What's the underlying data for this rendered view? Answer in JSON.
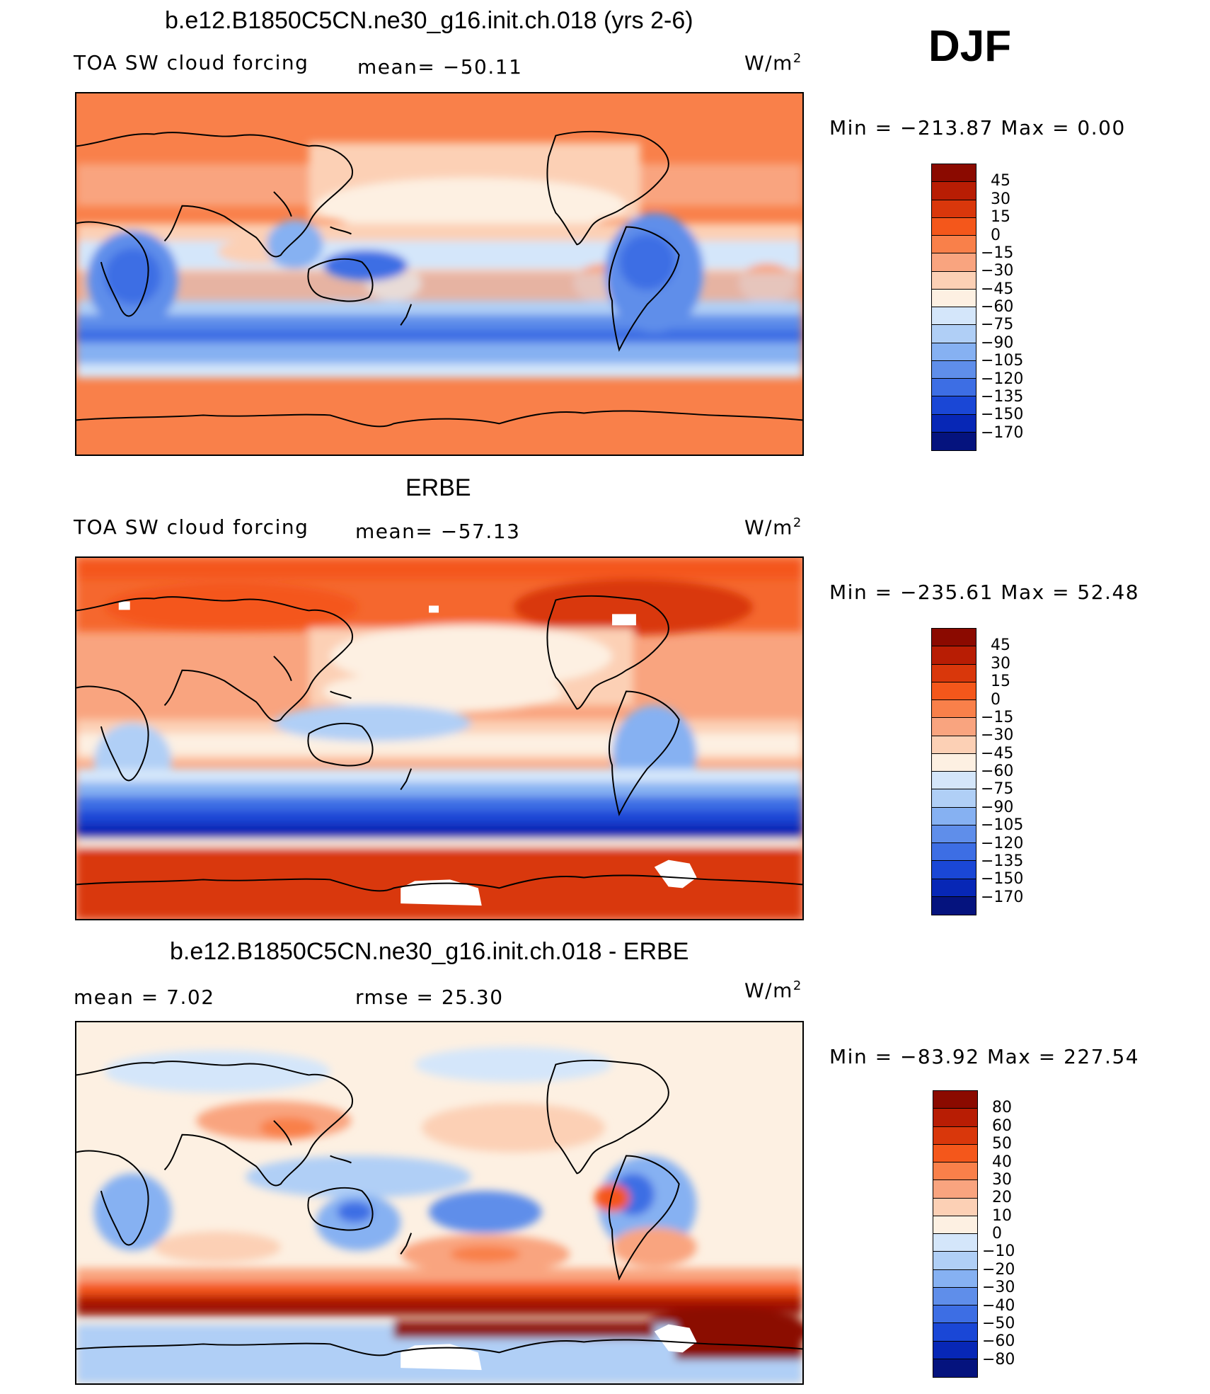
{
  "season": "DJF",
  "panels": [
    {
      "id": "model",
      "title": "b.e12.B1850C5CN.ne30_g16.init.ch.018 (yrs 2-6)",
      "left_label": "TOA SW cloud forcing",
      "stat_label": "mean= −50.11",
      "units": "W/m",
      "units_exp": "2",
      "minmax": "Min  =  −213.87  Max  =     0.00",
      "colorbar": {
        "colors": [
          "#8b0a00",
          "#b81d04",
          "#d9370b",
          "#f4571b",
          "#f9804a",
          "#f9a47f",
          "#fcd0b5",
          "#fdf0e2",
          "#d4e6fa",
          "#b0cff6",
          "#86b1f2",
          "#5f8eea",
          "#3d6ee4",
          "#1a47d6",
          "#0727b6",
          "#05137e"
        ],
        "ticks": [
          "45",
          "30",
          "15",
          "0",
          "−15",
          "−30",
          "−45",
          "−60",
          "−75",
          "−90",
          "−105",
          "−120",
          "−135",
          "−150",
          "−170"
        ]
      }
    },
    {
      "id": "obs",
      "title": "ERBE",
      "left_label": "TOA SW cloud forcing",
      "stat_label": "mean= −57.13",
      "units": "W/m",
      "units_exp": "2",
      "minmax": "Min  =  −235.61  Max  =   52.48",
      "colorbar": {
        "colors": [
          "#8b0a00",
          "#b81d04",
          "#d9370b",
          "#f4571b",
          "#f9804a",
          "#f9a47f",
          "#fcd0b5",
          "#fdf0e2",
          "#d4e6fa",
          "#b0cff6",
          "#86b1f2",
          "#5f8eea",
          "#3d6ee4",
          "#1a47d6",
          "#0727b6",
          "#05137e"
        ],
        "ticks": [
          "45",
          "30",
          "15",
          "0",
          "−15",
          "−30",
          "−45",
          "−60",
          "−75",
          "−90",
          "−105",
          "−120",
          "−135",
          "−150",
          "−170"
        ]
      }
    },
    {
      "id": "diff",
      "title": "b.e12.B1850C5CN.ne30_g16.init.ch.018 - ERBE",
      "left_label": "mean  =     7.02",
      "stat_label": "rmse  =    25.30",
      "units": "W/m",
      "units_exp": "2",
      "minmax": "Min  =  −83.92  Max  =  227.54",
      "colorbar": {
        "colors": [
          "#8b0a00",
          "#b81d04",
          "#d9370b",
          "#f4571b",
          "#f9804a",
          "#f9a47f",
          "#fcd0b5",
          "#fdf0e2",
          "#d4e6fa",
          "#b0cff6",
          "#86b1f2",
          "#5f8eea",
          "#3d6ee4",
          "#1a47d6",
          "#0727b6",
          "#05137e"
        ],
        "ticks": [
          "80",
          "60",
          "50",
          "40",
          "30",
          "20",
          "10",
          "0",
          "−10",
          "−20",
          "−30",
          "−40",
          "−50",
          "−60",
          "−80"
        ]
      }
    }
  ]
}
